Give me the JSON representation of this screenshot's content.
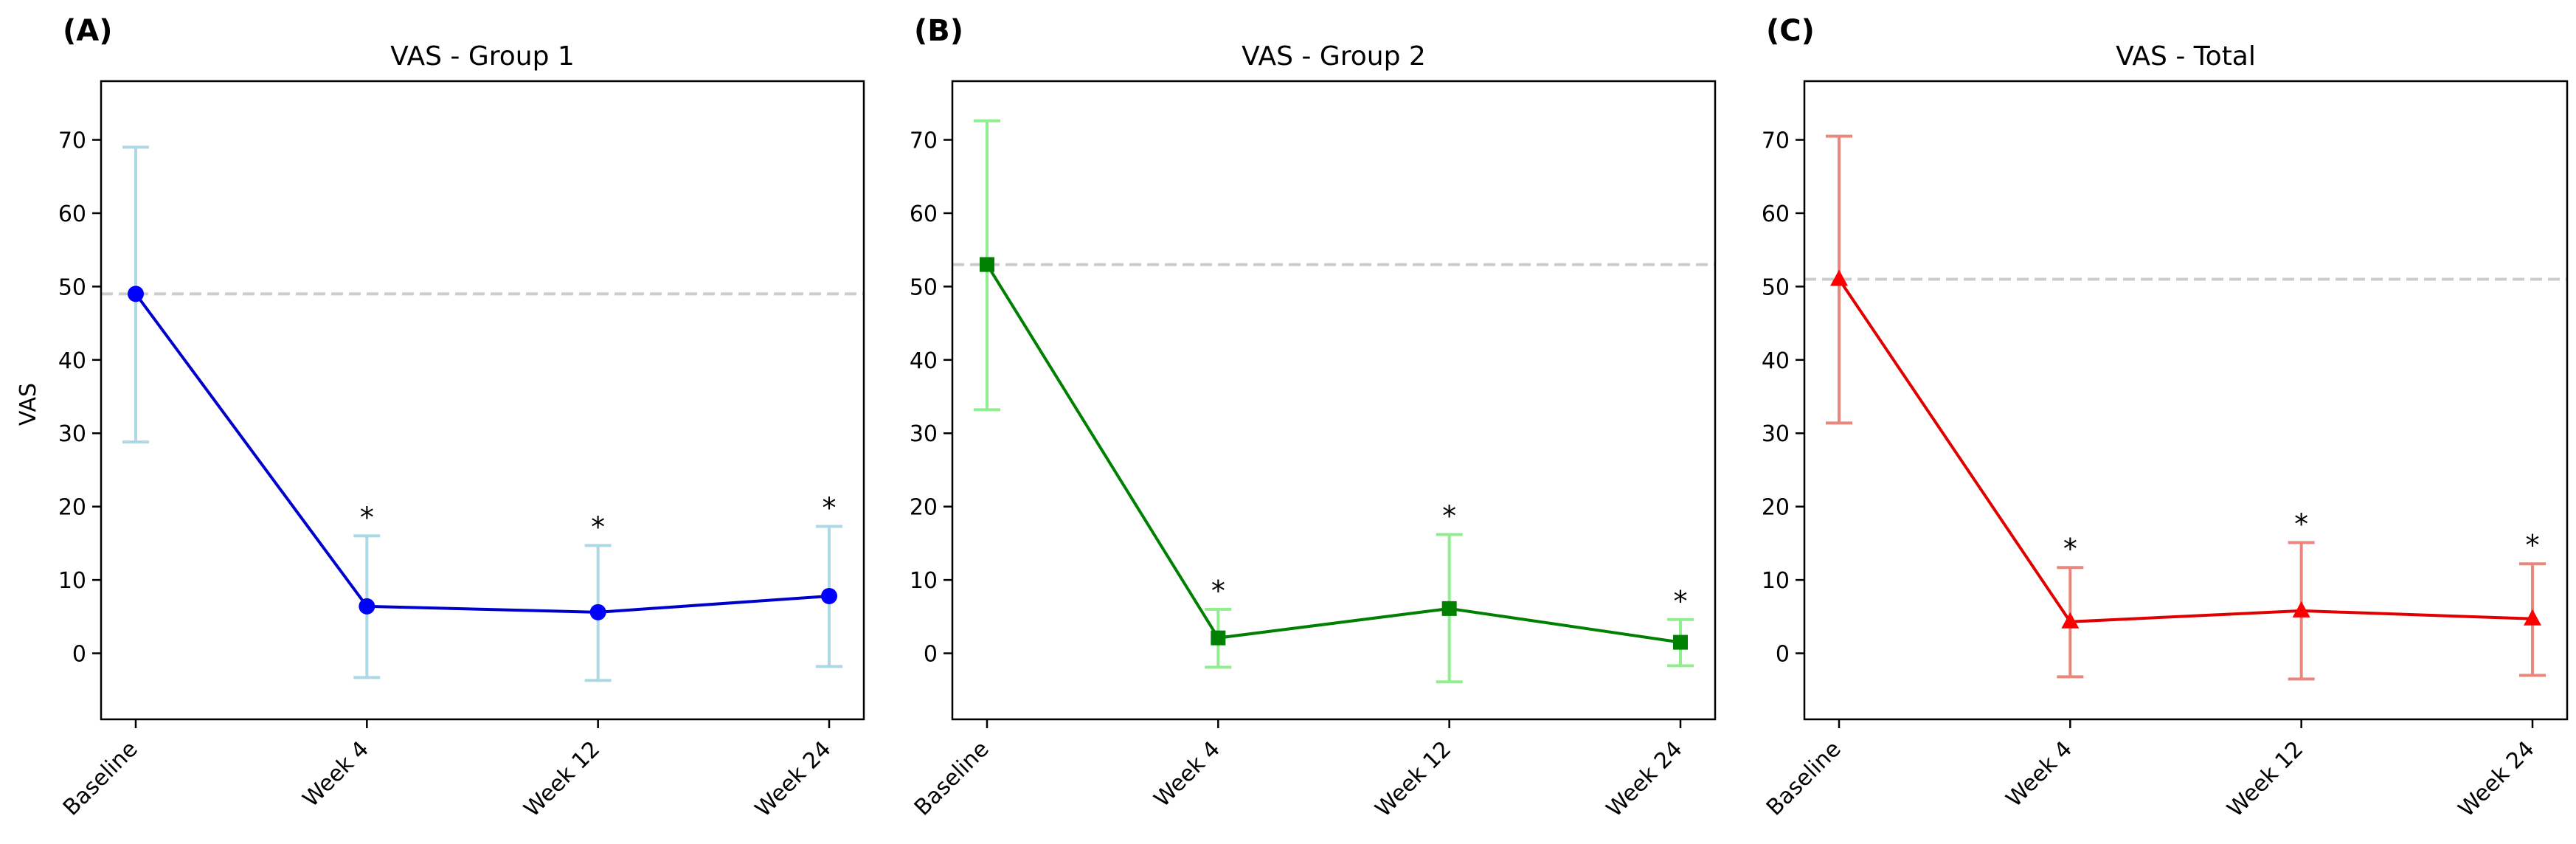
{
  "chart_data": [
    {
      "type": "line",
      "panel_label": "(A)",
      "title": "VAS - Group 1",
      "xlabel": "",
      "ylabel": "VAS",
      "categories": [
        "Baseline",
        "Week 4",
        "Week 12",
        "Week 24"
      ],
      "ylim": [
        -9,
        78
      ],
      "yticks": [
        0,
        10,
        20,
        30,
        40,
        50,
        60,
        70
      ],
      "reference_line": 49,
      "series": [
        {
          "values": [
            49,
            6.4,
            5.6,
            7.8
          ],
          "error_low": [
            28.8,
            -3.3,
            -3.7,
            -1.8
          ],
          "error_high": [
            69,
            16,
            14.7,
            17.3
          ],
          "significance": [
            "",
            "*",
            "*",
            "*"
          ]
        }
      ],
      "grid": false,
      "colors": {
        "line": "#0000cc",
        "marker": "#0000ff",
        "error": "#add8e6"
      },
      "marker": "circle"
    },
    {
      "type": "line",
      "panel_label": "(B)",
      "title": "VAS - Group 2",
      "xlabel": "",
      "ylabel": "",
      "categories": [
        "Baseline",
        "Week 4",
        "Week 12",
        "Week 24"
      ],
      "ylim": [
        -9,
        78
      ],
      "yticks": [
        0,
        10,
        20,
        30,
        40,
        50,
        60,
        70
      ],
      "reference_line": 53,
      "series": [
        {
          "values": [
            53,
            2.1,
            6.1,
            1.5
          ],
          "error_low": [
            33.2,
            -1.9,
            -3.9,
            -1.7
          ],
          "error_high": [
            72.6,
            6,
            16.2,
            4.6
          ],
          "significance": [
            "",
            "*",
            "*",
            "*"
          ]
        }
      ],
      "grid": false,
      "colors": {
        "line": "#008000",
        "marker": "#008000",
        "error": "#90ee90"
      },
      "marker": "square"
    },
    {
      "type": "line",
      "panel_label": "(C)",
      "title": "VAS - Total",
      "xlabel": "",
      "ylabel": "",
      "categories": [
        "Baseline",
        "Week 4",
        "Week 12",
        "Week 24"
      ],
      "ylim": [
        -9,
        78
      ],
      "yticks": [
        0,
        10,
        20,
        30,
        40,
        50,
        60,
        70
      ],
      "reference_line": 51,
      "series": [
        {
          "values": [
            51,
            4.3,
            5.8,
            4.7
          ],
          "error_low": [
            31.4,
            -3.2,
            -3.5,
            -3
          ],
          "error_high": [
            70.5,
            11.7,
            15.1,
            12.2
          ],
          "significance": [
            "",
            "*",
            "*",
            "*"
          ]
        }
      ],
      "grid": false,
      "colors": {
        "line": "#e00000",
        "marker": "#ff0000",
        "error": "#e9877d"
      },
      "marker": "triangle"
    }
  ]
}
